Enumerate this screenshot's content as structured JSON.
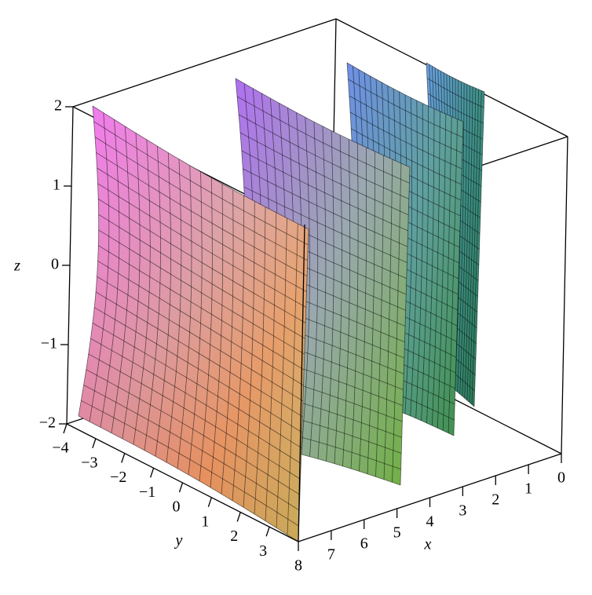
{
  "chart_data": {
    "type": "surface3d",
    "x_label": "x",
    "y_label": "y",
    "z_label": "z",
    "xlim": [
      0,
      8
    ],
    "ylim": [
      -4,
      4
    ],
    "zlim": [
      -2,
      2
    ],
    "xticks": [
      0,
      1,
      2,
      3,
      4,
      5,
      6,
      7,
      8
    ],
    "yticks": [
      {
        "value": -4,
        "label": "−4"
      },
      {
        "value": -3,
        "label": "−3"
      },
      {
        "value": -2,
        "label": "−2"
      },
      {
        "value": -1,
        "label": "−1"
      },
      0,
      1,
      2,
      3
    ],
    "zticks": [
      {
        "value": -2,
        "label": "−2"
      },
      {
        "value": -1,
        "label": "−1"
      },
      0,
      1,
      2
    ]
  }
}
